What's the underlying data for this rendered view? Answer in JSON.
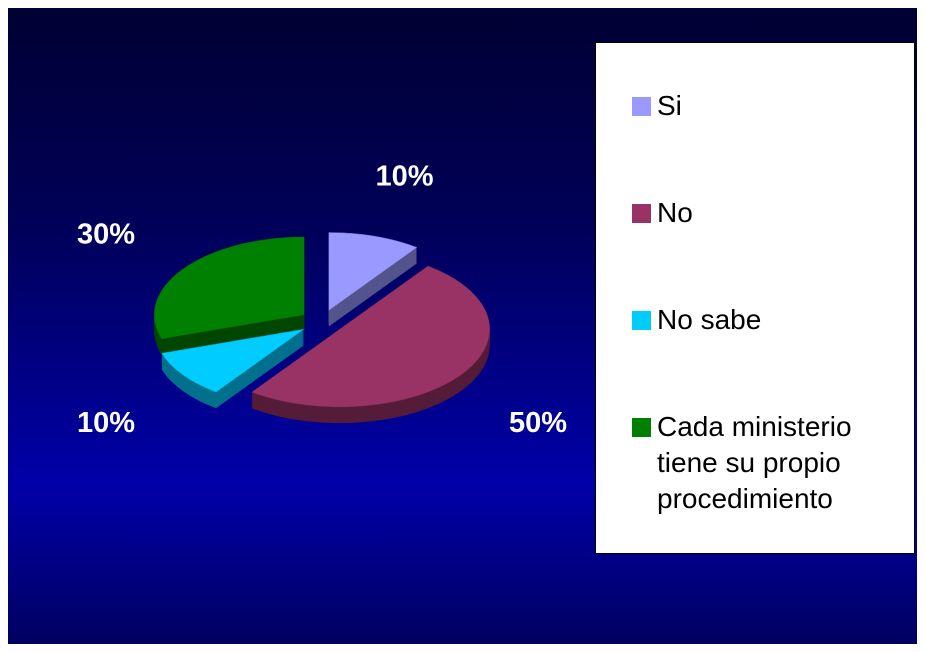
{
  "chart_data": {
    "type": "pie",
    "categories": [
      "Si",
      "No",
      "No sabe",
      "Cada ministerio tiene su propio procedimiento"
    ],
    "values": [
      10,
      50,
      10,
      30
    ],
    "value_labels": [
      "10%",
      "50%",
      "10%",
      "30%"
    ],
    "colors": [
      "#9999ff",
      "#993366",
      "#00ccff",
      "#008000"
    ],
    "legend": "right"
  }
}
